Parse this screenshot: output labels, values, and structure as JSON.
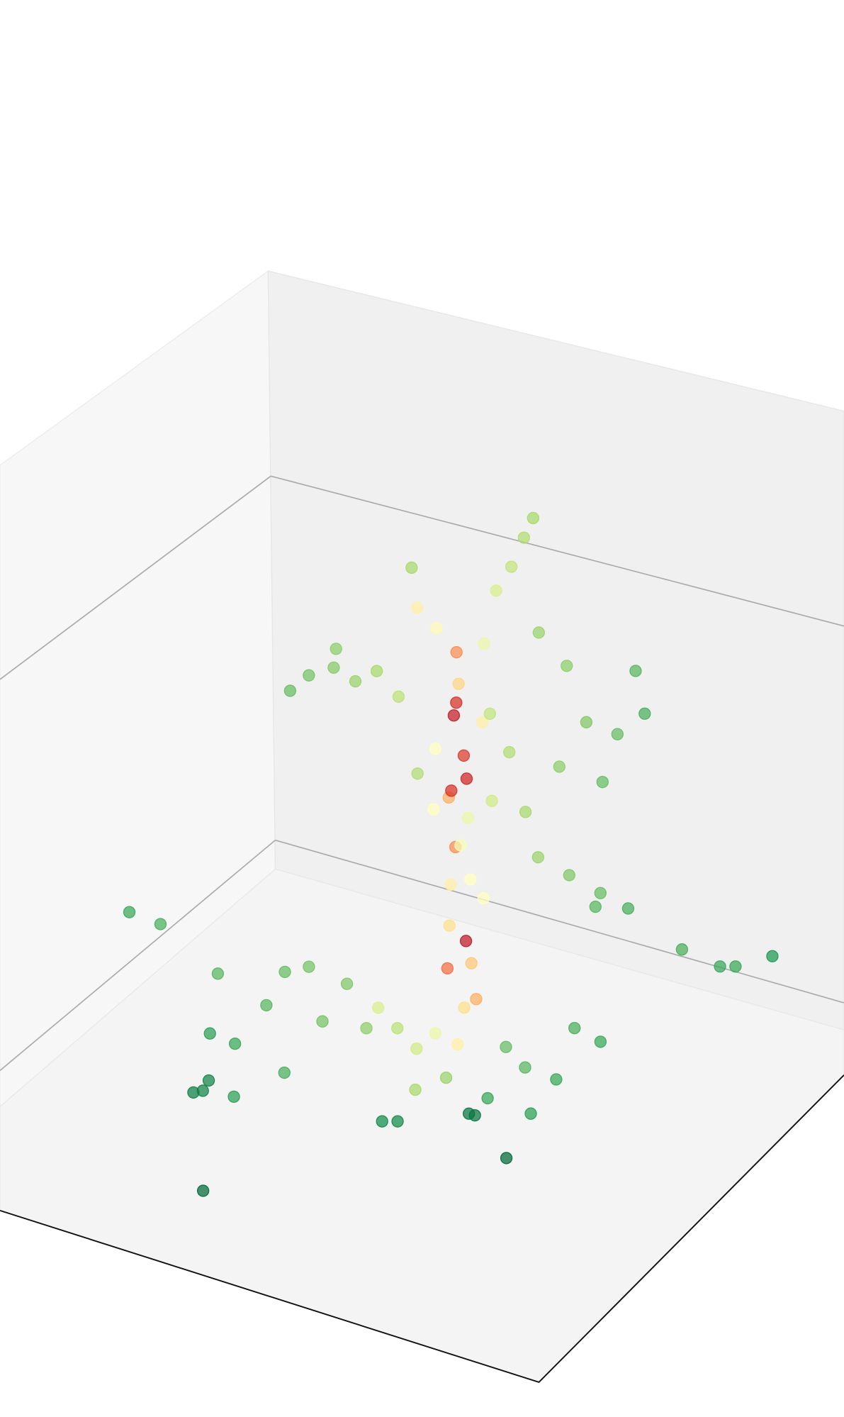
{
  "chart_data": {
    "type": "scatter3d",
    "colormap": "RdYlGn",
    "xlim": [
      0,
      1
    ],
    "ylim": [
      0,
      1
    ],
    "zlim": [
      0,
      1
    ],
    "x": [
      0.5,
      0.52,
      0.49,
      0.51,
      0.5,
      0.48,
      0.53,
      0.5,
      0.51,
      0.49,
      0.5,
      0.52,
      0.51,
      0.48,
      0.53,
      0.5,
      0.51,
      0.52,
      0.5,
      0.54,
      0.49,
      0.55,
      0.57,
      0.58,
      0.59,
      0.47,
      0.53,
      0.5,
      0.48,
      0.54,
      0.52,
      0.47,
      0.55,
      0.56,
      0.45,
      0.3,
      0.33,
      0.36,
      0.28,
      0.39,
      0.34,
      0.42,
      0.45,
      0.68,
      0.72,
      0.66,
      0.74,
      0.64,
      0.7,
      0.62,
      0.76,
      0.6,
      0.58,
      0.66,
      0.7,
      0.62,
      0.74,
      0.68,
      0.91,
      0.86,
      0.84,
      0.8,
      0.1,
      0.14,
      0.2,
      0.28,
      0.25,
      0.3,
      0.22,
      0.32,
      0.35,
      0.27,
      0.38,
      0.4,
      0.34,
      0.64,
      0.68,
      0.62,
      0.7,
      0.6,
      0.66,
      0.72,
      0.46,
      0.44,
      0.48,
      0.52,
      0.42,
      0.32,
      0.67,
      0.58,
      0.59,
      0.47,
      0.49,
      0.23,
      0.24,
      0.22
    ],
    "y": [
      0.35,
      0.33,
      0.36,
      0.34,
      0.37,
      0.33,
      0.36,
      0.35,
      0.33,
      0.35,
      0.36,
      0.35,
      0.34,
      0.37,
      0.32,
      0.35,
      0.36,
      0.37,
      0.34,
      0.33,
      0.38,
      0.31,
      0.3,
      0.28,
      0.27,
      0.4,
      0.36,
      0.33,
      0.38,
      0.34,
      0.37,
      0.36,
      0.33,
      0.35,
      0.37,
      0.42,
      0.4,
      0.39,
      0.44,
      0.38,
      0.41,
      0.37,
      0.38,
      0.28,
      0.26,
      0.3,
      0.24,
      0.29,
      0.27,
      0.31,
      0.25,
      0.32,
      0.33,
      0.3,
      0.28,
      0.32,
      0.27,
      0.26,
      0.15,
      0.17,
      0.18,
      0.22,
      0.6,
      0.58,
      0.52,
      0.52,
      0.56,
      0.5,
      0.58,
      0.54,
      0.48,
      0.6,
      0.46,
      0.44,
      0.5,
      0.4,
      0.38,
      0.42,
      0.36,
      0.44,
      0.42,
      0.32,
      0.4,
      0.42,
      0.44,
      0.42,
      0.44,
      0.78,
      0.51,
      0.46,
      0.46,
      0.52,
      0.51,
      0.62,
      0.62,
      0.63
    ],
    "z": [
      0.05,
      0.12,
      0.18,
      0.22,
      0.26,
      0.3,
      0.34,
      0.38,
      0.42,
      0.46,
      0.48,
      0.5,
      0.53,
      0.55,
      0.58,
      0.6,
      0.63,
      0.67,
      0.7,
      0.72,
      0.76,
      0.8,
      0.84,
      0.88,
      0.91,
      0.8,
      0.2,
      0.1,
      0.08,
      0.3,
      0.4,
      0.44,
      0.46,
      0.62,
      0.5,
      0.65,
      0.66,
      0.64,
      0.63,
      0.66,
      0.7,
      0.62,
      0.85,
      0.6,
      0.58,
      0.7,
      0.68,
      0.52,
      0.5,
      0.75,
      0.62,
      0.45,
      0.55,
      0.35,
      0.32,
      0.38,
      0.3,
      0.28,
      0.2,
      0.18,
      0.18,
      0.22,
      0.3,
      0.28,
      0.18,
      0.15,
      0.1,
      0.2,
      0.12,
      0.06,
      0.12,
      0.04,
      0.18,
      0.1,
      0.22,
      0.08,
      0.06,
      0.12,
      0.14,
      0.04,
      0.02,
      0.1,
      0.06,
      0.1,
      0.02,
      0.04,
      0.14,
      0.0,
      0.0,
      0.02,
      0.02,
      0.01,
      0.01,
      0.05,
      0.07,
      0.05
    ],
    "values": [
      0.45,
      0.3,
      0.2,
      0.05,
      0.4,
      0.45,
      0.5,
      0.25,
      0.55,
      0.3,
      0.1,
      0.08,
      0.12,
      0.5,
      0.45,
      0.06,
      0.1,
      0.38,
      0.25,
      0.55,
      0.48,
      0.6,
      0.65,
      0.68,
      0.7,
      0.45,
      0.35,
      0.4,
      0.55,
      0.5,
      0.52,
      0.5,
      0.62,
      0.65,
      0.68,
      0.78,
      0.75,
      0.72,
      0.8,
      0.7,
      0.74,
      0.66,
      0.7,
      0.76,
      0.8,
      0.74,
      0.82,
      0.74,
      0.8,
      0.72,
      0.84,
      0.7,
      0.68,
      0.76,
      0.8,
      0.72,
      0.84,
      0.82,
      0.9,
      0.86,
      0.86,
      0.84,
      0.86,
      0.84,
      0.82,
      0.82,
      0.86,
      0.8,
      0.88,
      0.84,
      0.78,
      0.88,
      0.76,
      0.74,
      0.78,
      0.82,
      0.86,
      0.8,
      0.84,
      0.86,
      0.88,
      0.86,
      0.62,
      0.66,
      0.7,
      0.72,
      0.6,
      1.0,
      1.0,
      0.97,
      0.97,
      0.93,
      0.93,
      0.94,
      0.94,
      0.95
    ]
  }
}
